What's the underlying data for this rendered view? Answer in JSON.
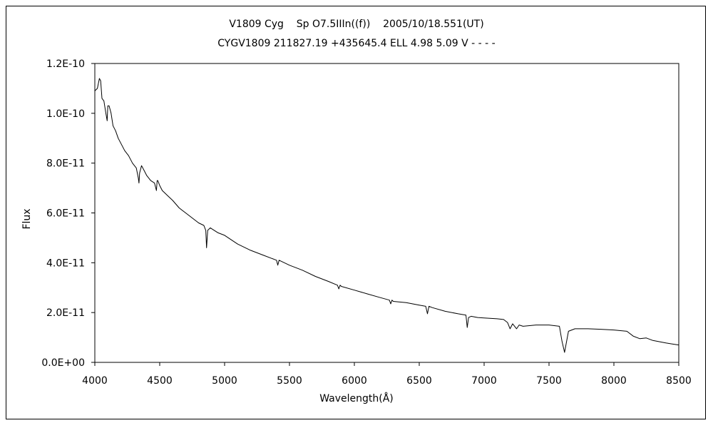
{
  "chart_data": {
    "type": "line",
    "title": "V1809 Cyg    Sp O7.5IIIn((f))    2005/10/18.551(UT)",
    "subtitle": "CYGV1809 211827.19 +435645.4 ELL 4.98 5.09 V - - - -",
    "xlabel": "Wavelength(Å)",
    "ylabel": "Flux",
    "xlim": [
      4000,
      8500
    ],
    "ylim": [
      0,
      1.2e-10
    ],
    "xticks": [
      "4000",
      "4500",
      "5000",
      "5500",
      "6000",
      "6500",
      "7000",
      "7500",
      "8000",
      "8500"
    ],
    "yticks": [
      "0.0E+00",
      "2.0E-11",
      "4.0E-11",
      "6.0E-11",
      "8.0E-11",
      "1.0E-10",
      "1.2E-10"
    ],
    "grid": false,
    "series": [
      {
        "x": [
          4000,
          4020,
          4035,
          4045,
          4055,
          4070,
          4085,
          4095,
          4100,
          4110,
          4125,
          4140,
          4160,
          4180,
          4200,
          4230,
          4260,
          4290,
          4320,
          4335,
          4340,
          4345,
          4360,
          4380,
          4400,
          4430,
          4460,
          4475,
          4480,
          4485,
          4500,
          4520,
          4540,
          4560,
          4600,
          4650,
          4700,
          4750,
          4800,
          4840,
          4855,
          4861,
          4870,
          4890,
          4920,
          4950,
          5000,
          5100,
          5200,
          5300,
          5400,
          5410,
          5420,
          5500,
          5600,
          5700,
          5800,
          5870,
          5880,
          5890,
          5900,
          6000,
          6100,
          6200,
          6270,
          6280,
          6290,
          6300,
          6400,
          6500,
          6550,
          6563,
          6575,
          6600,
          6700,
          6800,
          6860,
          6870,
          6880,
          6900,
          6950,
          7000,
          7100,
          7150,
          7180,
          7200,
          7220,
          7250,
          7270,
          7300,
          7400,
          7500,
          7580,
          7600,
          7620,
          7650,
          7700,
          7800,
          7900,
          8000,
          8100,
          8150,
          8200,
          8250,
          8300,
          8350,
          8400,
          8450,
          8500
        ],
        "values": [
          1.09e-10,
          1.1e-10,
          1.14e-10,
          1.13e-10,
          1.06e-10,
          1.05e-10,
          1e-10,
          9.7e-11,
          1.03e-10,
          1.03e-10,
          1e-10,
          9.5e-11,
          9.3e-11,
          9e-11,
          8.8e-11,
          8.5e-11,
          8.3e-11,
          8e-11,
          7.8e-11,
          7.4e-11,
          7.2e-11,
          7.6e-11,
          7.9e-11,
          7.7e-11,
          7.5e-11,
          7.3e-11,
          7.2e-11,
          6.9e-11,
          7.3e-11,
          7.3e-11,
          7.1e-11,
          6.9e-11,
          6.8e-11,
          6.7e-11,
          6.5e-11,
          6.2e-11,
          6e-11,
          5.8e-11,
          5.6e-11,
          5.5e-11,
          5.3e-11,
          4.6e-11,
          5.3e-11,
          5.4e-11,
          5.3e-11,
          5.2e-11,
          5.1e-11,
          4.75e-11,
          4.5e-11,
          4.3e-11,
          4.1e-11,
          3.9e-11,
          4.1e-11,
          3.9e-11,
          3.7e-11,
          3.45e-11,
          3.25e-11,
          3.1e-11,
          2.95e-11,
          3.1e-11,
          3.05e-11,
          2.9e-11,
          2.75e-11,
          2.6e-11,
          2.5e-11,
          2.35e-11,
          2.5e-11,
          2.45e-11,
          2.4e-11,
          2.3e-11,
          2.25e-11,
          1.95e-11,
          2.25e-11,
          2.2e-11,
          2.05e-11,
          1.95e-11,
          1.9e-11,
          1.4e-11,
          1.8e-11,
          1.85e-11,
          1.8e-11,
          1.78e-11,
          1.75e-11,
          1.72e-11,
          1.6e-11,
          1.35e-11,
          1.55e-11,
          1.35e-11,
          1.5e-11,
          1.45e-11,
          1.5e-11,
          1.5e-11,
          1.45e-11,
          8.5e-12,
          4e-12,
          1.25e-11,
          1.35e-11,
          1.35e-11,
          1.33e-11,
          1.3e-11,
          1.25e-11,
          1.05e-11,
          9.5e-12,
          9.8e-12,
          8.8e-12,
          8.3e-12,
          7.8e-12,
          7.4e-12,
          7e-12
        ]
      }
    ]
  }
}
